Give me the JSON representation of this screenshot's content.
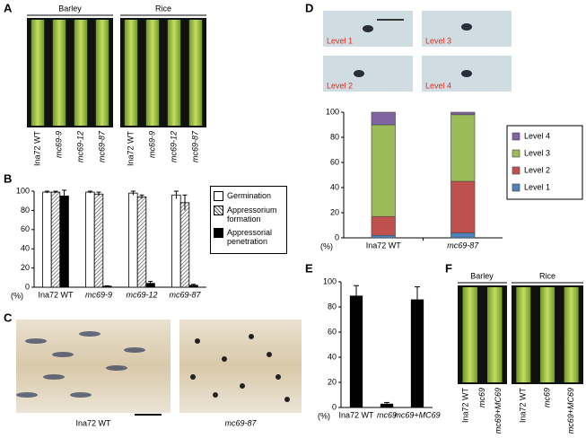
{
  "panel_labels": [
    "A",
    "B",
    "C",
    "D",
    "E",
    "F"
  ],
  "panel_a": {
    "groups": [
      "Barley",
      "Rice"
    ],
    "samples": [
      "Ina72 WT",
      "mc69-9",
      "mc69-12",
      "mc69-87"
    ]
  },
  "panel_c": {
    "captions": [
      "Ina72 WT",
      "mc69-87"
    ]
  },
  "panel_d_images": {
    "levels": [
      "Level 1",
      "Level 3",
      "Level 2",
      "Level 4"
    ]
  },
  "panel_f": {
    "groups": [
      "Barley",
      "Rice"
    ],
    "samples": [
      "Ina72 WT",
      "mc69",
      "mc69+MC69"
    ]
  },
  "chart_data": [
    {
      "type": "grouped_bar",
      "y_label": "(%)",
      "categories": [
        "Ina72 WT",
        "mc69-9",
        "mc69-12",
        "mc69-87"
      ],
      "series": [
        {
          "name": "Germination",
          "color": "#ffffff",
          "values": [
            99,
            99,
            98,
            96
          ],
          "errors": [
            1,
            1,
            2,
            4
          ]
        },
        {
          "name": "Appressorium formation",
          "color": "#ffffff",
          "hatch": true,
          "values": [
            99,
            97,
            94,
            88
          ],
          "errors": [
            1,
            2,
            2,
            8
          ]
        },
        {
          "name": "Appressorial penetration",
          "color": "#000000",
          "values": [
            95,
            1,
            4,
            2
          ],
          "errors": [
            6,
            0.5,
            2,
            1
          ]
        }
      ],
      "ylim": [
        0,
        100
      ],
      "yticks": [
        0,
        20,
        40,
        60,
        80,
        100
      ]
    },
    {
      "type": "stacked_bar",
      "y_label": "(%)",
      "categories": [
        "Ina72 WT",
        "mc69-87"
      ],
      "series": [
        {
          "name": "Level 1",
          "color": "#4f81bd",
          "values": [
            2,
            4
          ]
        },
        {
          "name": "Level 2",
          "color": "#c0504d",
          "values": [
            15,
            41
          ]
        },
        {
          "name": "Level 3",
          "color": "#9bbb59",
          "values": [
            73,
            53
          ]
        },
        {
          "name": "Level 4",
          "color": "#8064a2",
          "values": [
            10,
            2
          ]
        }
      ],
      "ylim": [
        0,
        100
      ],
      "yticks": [
        0,
        20,
        40,
        60,
        80,
        100
      ]
    },
    {
      "type": "bar",
      "y_label": "(%)",
      "categories": [
        "Ina72 WT",
        "mc69",
        "mc69+MC69"
      ],
      "values": [
        89,
        3,
        86
      ],
      "errors": [
        8,
        1,
        10
      ],
      "color": "#000000",
      "ylim": [
        0,
        100
      ],
      "yticks": [
        0,
        20,
        40,
        60,
        80,
        100
      ]
    }
  ]
}
